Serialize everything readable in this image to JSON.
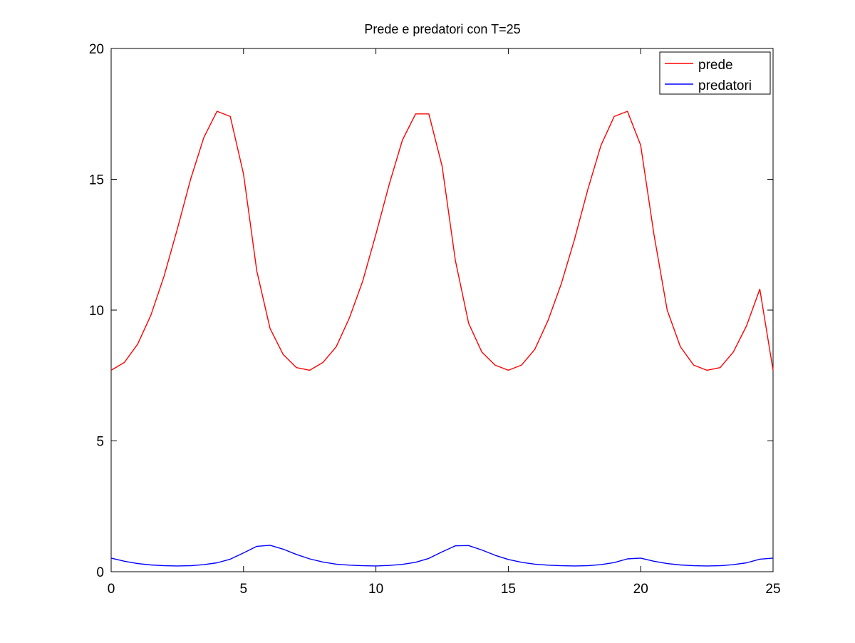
{
  "chart_data": {
    "type": "line",
    "title": "Prede e predatori con T=25",
    "xlabel": "",
    "ylabel": "",
    "xlim": [
      0,
      25
    ],
    "ylim": [
      0,
      20
    ],
    "x_ticks": [
      0,
      5,
      10,
      15,
      20,
      25
    ],
    "y_ticks": [
      0,
      5,
      10,
      15,
      20
    ],
    "grid": false,
    "legend_position": "top-right",
    "x": [
      0,
      0.5,
      1,
      1.5,
      2,
      2.5,
      3,
      3.5,
      4,
      4.5,
      5,
      5.5,
      6,
      6.5,
      7,
      7.5,
      8,
      8.5,
      9,
      9.5,
      10,
      10.5,
      11,
      11.5,
      12,
      12.5,
      13,
      13.5,
      14,
      14.5,
      15,
      15.5,
      16,
      16.5,
      17,
      17.5,
      18,
      18.5,
      19,
      19.5,
      20,
      20.5,
      21,
      21.5,
      22,
      22.5,
      23,
      23.5,
      24,
      24.5,
      25
    ],
    "series": [
      {
        "name": "prede",
        "color": "#ff0000",
        "values": [
          7.7,
          8.0,
          8.7,
          9.8,
          11.3,
          13.1,
          15.0,
          16.6,
          17.6,
          17.4,
          15.2,
          11.5,
          9.3,
          8.3,
          7.8,
          7.7,
          8.0,
          8.6,
          9.7,
          11.1,
          12.9,
          14.8,
          16.5,
          17.5,
          17.5,
          15.5,
          11.9,
          9.5,
          8.4,
          7.9,
          7.7,
          7.9,
          8.5,
          9.6,
          11.0,
          12.7,
          14.6,
          16.3,
          17.4,
          17.6,
          16.3,
          12.9,
          10.0,
          8.6,
          7.9,
          7.7,
          7.8,
          8.4,
          9.4,
          10.8,
          7.7
        ]
      },
      {
        "name": "predatori",
        "color": "#0000ff",
        "values": [
          0.52,
          0.4,
          0.31,
          0.26,
          0.23,
          0.22,
          0.23,
          0.27,
          0.34,
          0.48,
          0.72,
          0.97,
          1.01,
          0.86,
          0.66,
          0.49,
          0.37,
          0.29,
          0.25,
          0.23,
          0.22,
          0.24,
          0.28,
          0.36,
          0.51,
          0.76,
          0.99,
          1.0,
          0.83,
          0.63,
          0.47,
          0.36,
          0.29,
          0.25,
          0.23,
          0.22,
          0.23,
          0.27,
          0.35,
          0.49,
          0.52,
          0.4,
          0.31,
          0.26,
          0.23,
          0.22,
          0.23,
          0.27,
          0.34,
          0.48,
          0.52
        ]
      }
    ]
  }
}
